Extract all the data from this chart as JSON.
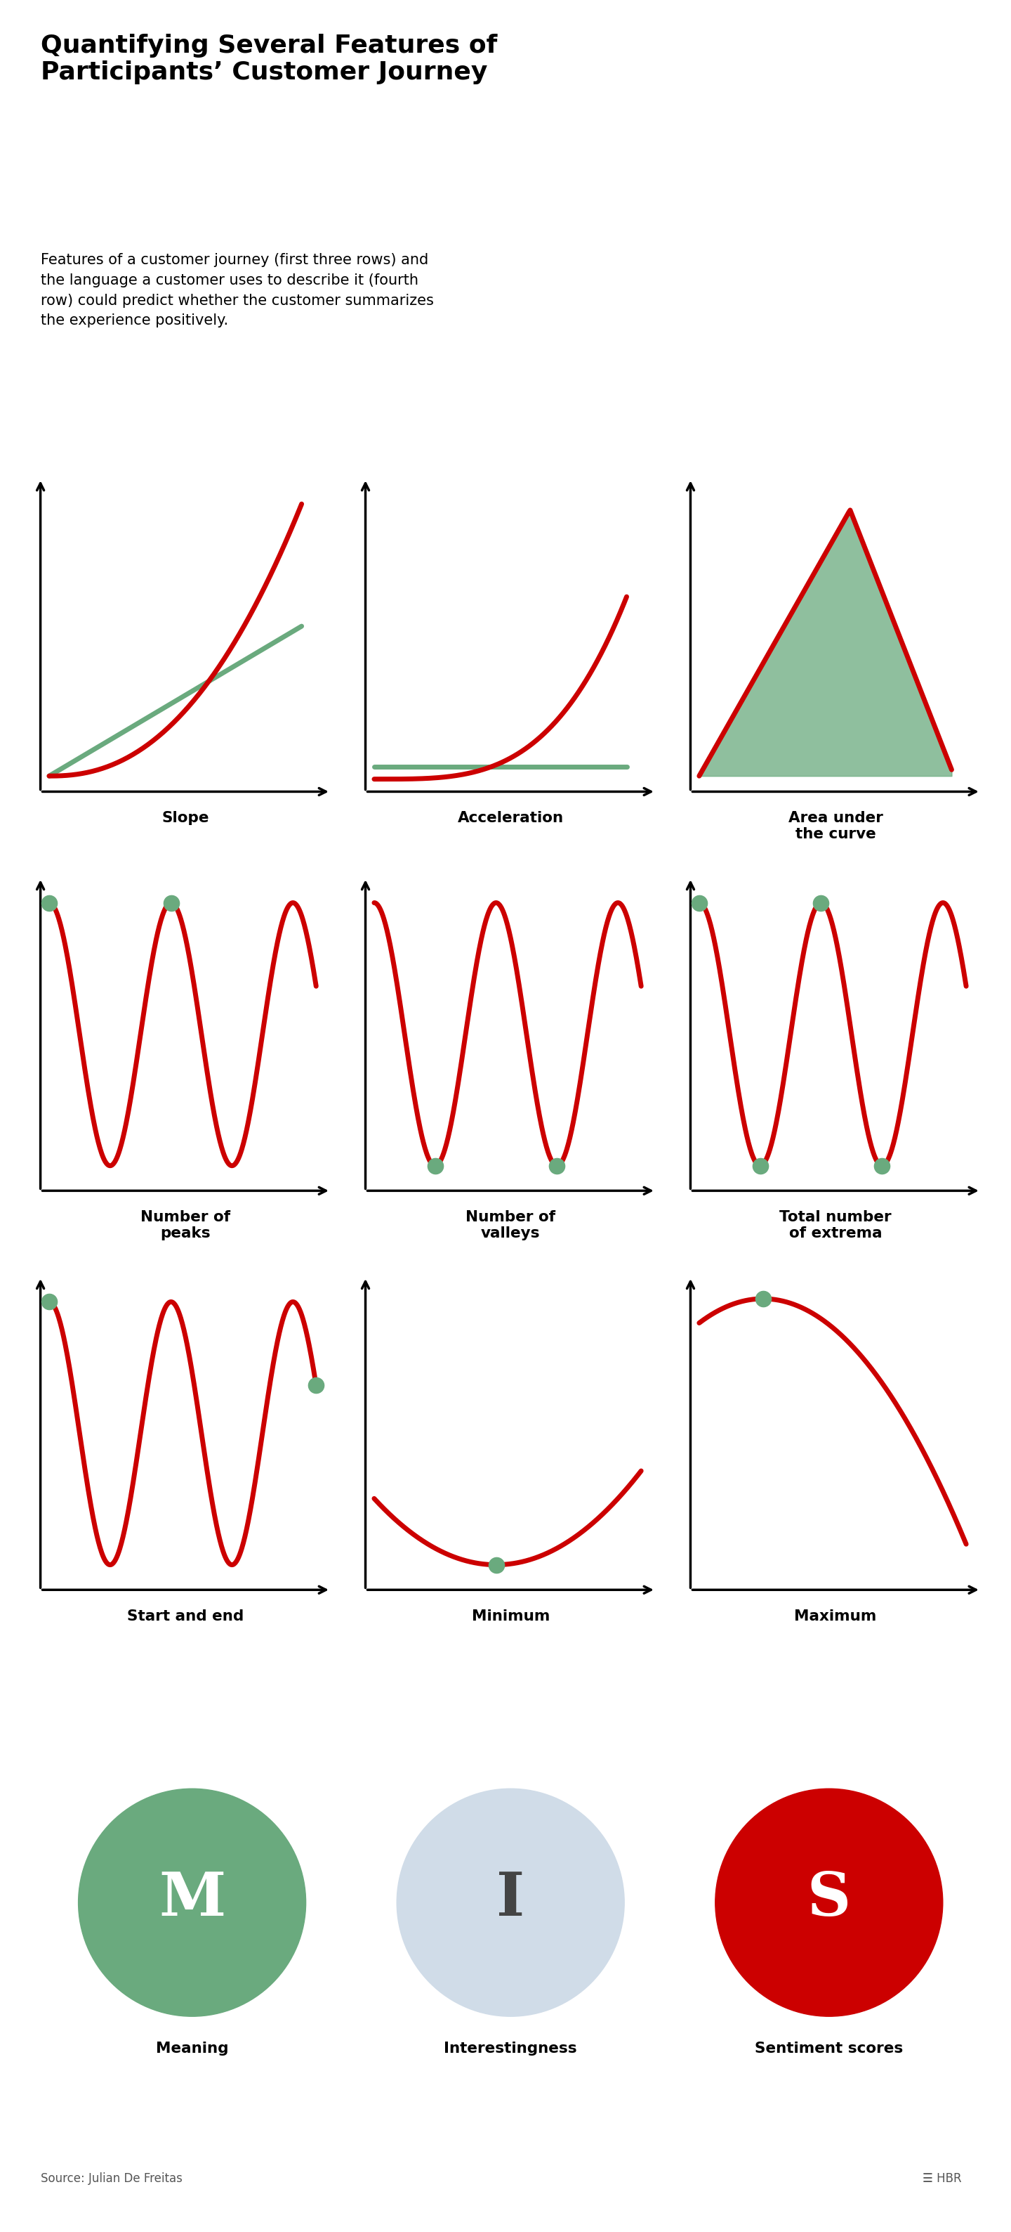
{
  "title_line1": "Quantifying Several Features of",
  "title_line2": "Participants’ Customer Journey",
  "subtitle": "Features of a customer journey (first three rows) and\nthe language a customer uses to describe it (fourth\nrow) could predict whether the customer summarizes\nthe experience positively.",
  "panel_bg": "#dce9f5",
  "red_color": "#cc0000",
  "green_color": "#6aaa7e",
  "source_text": "Source: Julian De Freitas",
  "panels": [
    {
      "label": "Slope",
      "type": "slope"
    },
    {
      "label": "Acceleration",
      "type": "acceleration"
    },
    {
      "label": "Area under\nthe curve",
      "type": "area"
    },
    {
      "label": "Number of\npeaks",
      "type": "peaks"
    },
    {
      "label": "Number of\nvalleys",
      "type": "valleys"
    },
    {
      "label": "Total number\nof extrema",
      "type": "extrema"
    },
    {
      "label": "Start and end",
      "type": "start_end"
    },
    {
      "label": "Minimum",
      "type": "minimum"
    },
    {
      "label": "Maximum",
      "type": "maximum"
    }
  ],
  "circles": [
    {
      "label": "Meaning",
      "letter": "M",
      "color": "#6aaa7e"
    },
    {
      "label": "Interestingness",
      "letter": "I",
      "color": "#d0dce8"
    },
    {
      "label": "Sentiment scores",
      "letter": "S",
      "color": "#cc0000"
    }
  ]
}
